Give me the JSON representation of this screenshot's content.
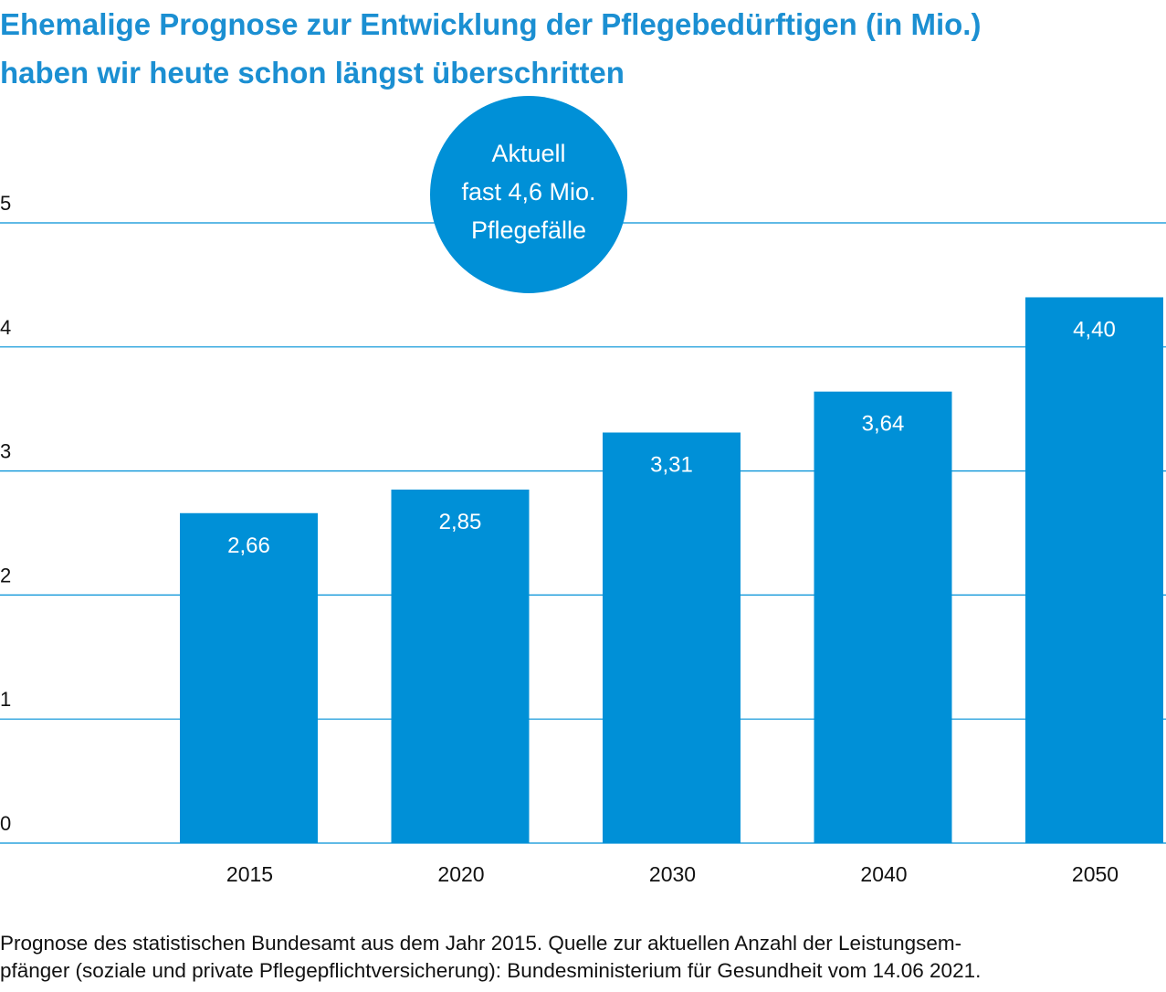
{
  "title_lines": [
    "Ehemalige Prognose zur Entwicklung der Pflegebedürftigen (in Mio.)",
    "haben wir heute schon längst überschritten"
  ],
  "footer_lines": [
    "Prognose des statistischen Bundesamt aus dem Jahr 2015. Quelle zur aktuellen Anzahl der Leistungsem-",
    "pfänger (soziale und private Pflegepflichtversicherung): Bundesministerium für Gesundheit vom 14.06 2021."
  ],
  "colors": {
    "bar": "#0090d7",
    "title": "#1b8fd2",
    "grid": "#0090d7"
  },
  "chart_data": {
    "type": "bar",
    "categories": [
      "2015",
      "2020",
      "2030",
      "2040",
      "2050"
    ],
    "values": [
      2.66,
      2.85,
      3.31,
      3.64,
      4.4
    ],
    "value_labels": [
      "2,66",
      "2,85",
      "3,31",
      "3,64",
      "4,40"
    ],
    "ylim": [
      0,
      5
    ],
    "yticks": [
      "0",
      "1",
      "2",
      "3",
      "4",
      "5"
    ],
    "grid": true,
    "annotation": {
      "lines": [
        "Aktuell",
        "fast 4,6 Mio.",
        "Pflegefälle"
      ]
    }
  }
}
